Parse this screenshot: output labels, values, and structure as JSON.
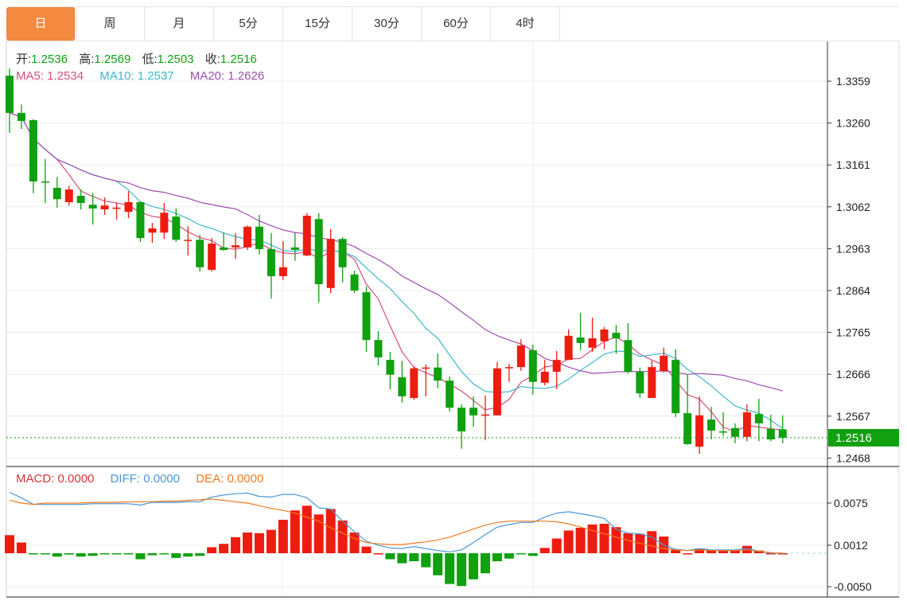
{
  "tabs": [
    {
      "label": "日",
      "active": true
    },
    {
      "label": "周"
    },
    {
      "label": "月"
    },
    {
      "label": "5分"
    },
    {
      "label": "15分"
    },
    {
      "label": "30分"
    },
    {
      "label": "60分"
    },
    {
      "label": "4时"
    }
  ],
  "ohlc_legend": {
    "open_label": "开:",
    "open": "1.2536",
    "high_label": "高:",
    "high": "1.2569",
    "low_label": "低:",
    "low": "1.2503",
    "close_label": "收:",
    "close": "1.2516"
  },
  "ma_legend": {
    "ma5": "MA5: 1.2534",
    "ma10": "MA10: 1.2537",
    "ma20": "MA20: 1.2626"
  },
  "macd_legend": {
    "macd": "MACD: 0.0000",
    "diff": "DIFF: 0.0000",
    "dea": "DEA: 0.0000"
  },
  "current_price": "1.2516",
  "colors": {
    "up": "#ee1c10",
    "down": "#10a010",
    "ma5": "#d4507c",
    "ma10": "#3eb8cc",
    "ma20": "#9d4fb0",
    "diff": "#4a98d8",
    "dea": "#f07a20",
    "tab_active": "#f48a3f"
  },
  "chart_data": [
    {
      "type": "candlestick",
      "y_ticks": [
        "1.3359",
        "1.3260",
        "1.3161",
        "1.3062",
        "1.2963",
        "1.2864",
        "1.2765",
        "1.2666",
        "1.2567",
        "1.2468"
      ],
      "ylim": [
        1.244,
        1.344
      ],
      "grid": true,
      "candles_ohlc": [
        [
          1.3372,
          1.3389,
          1.3237,
          1.3284
        ],
        [
          1.3284,
          1.3304,
          1.3246,
          1.3265
        ],
        [
          1.3267,
          1.3269,
          1.3094,
          1.3122
        ],
        [
          1.3122,
          1.3175,
          1.3071,
          1.312
        ],
        [
          1.3107,
          1.3133,
          1.306,
          1.308
        ],
        [
          1.3073,
          1.3112,
          1.3065,
          1.3103
        ],
        [
          1.3088,
          1.3103,
          1.3056,
          1.3071
        ],
        [
          1.3067,
          1.3094,
          1.302,
          1.3058
        ],
        [
          1.3056,
          1.3084,
          1.3043,
          1.3065
        ],
        [
          1.3058,
          1.3071,
          1.3032,
          1.306
        ],
        [
          1.305,
          1.3099,
          1.3035,
          1.3073
        ],
        [
          1.3073,
          1.3075,
          1.2979,
          1.2988
        ],
        [
          1.3001,
          1.3024,
          1.2977,
          1.3011
        ],
        [
          1.3001,
          1.3071,
          1.2986,
          1.3048
        ],
        [
          1.3039,
          1.3058,
          1.2979,
          1.2984
        ],
        [
          1.2983,
          1.3016,
          1.2947,
          1.2984
        ],
        [
          1.2984,
          1.2996,
          1.2909,
          1.2919
        ],
        [
          1.2913,
          1.2988,
          1.2909,
          1.2975
        ],
        [
          1.2966,
          1.3001,
          1.2958,
          1.296
        ],
        [
          1.2966,
          1.3,
          1.2939,
          1.2971
        ],
        [
          1.2966,
          1.3018,
          1.296,
          1.3015
        ],
        [
          1.3015,
          1.3043,
          1.2949,
          1.2962
        ],
        [
          1.2962,
          1.3,
          1.2845,
          1.2898
        ],
        [
          1.2898,
          1.2981,
          1.2889,
          1.2919
        ],
        [
          1.2966,
          1.3001,
          1.2934,
          1.296
        ],
        [
          1.2947,
          1.3047,
          1.2945,
          1.3041
        ],
        [
          1.3033,
          1.3047,
          1.2836,
          1.2879
        ],
        [
          1.287,
          1.3009,
          1.2858,
          1.2986
        ],
        [
          1.2986,
          1.299,
          1.2883,
          1.2919
        ],
        [
          1.2902,
          1.2911,
          1.2858,
          1.2864
        ],
        [
          1.286,
          1.2874,
          1.2719,
          1.2747
        ],
        [
          1.2747,
          1.2768,
          1.2687,
          1.2706
        ],
        [
          1.27,
          1.2719,
          1.2631,
          1.2665
        ],
        [
          1.2659,
          1.2698,
          1.2599,
          1.2614
        ],
        [
          1.261,
          1.2685,
          1.2606,
          1.268
        ],
        [
          1.268,
          1.2689,
          1.2614,
          1.2682
        ],
        [
          1.2682,
          1.2715,
          1.2633,
          1.2651
        ],
        [
          1.2651,
          1.2661,
          1.2578,
          1.2587
        ],
        [
          1.2587,
          1.2595,
          1.249,
          1.2531
        ],
        [
          1.2587,
          1.2614,
          1.2542,
          1.2569
        ],
        [
          1.2569,
          1.2616,
          1.251,
          1.2571
        ],
        [
          1.2569,
          1.2695,
          1.2569,
          1.268
        ],
        [
          1.268,
          1.2691,
          1.2648,
          1.2683
        ],
        [
          1.2683,
          1.2749,
          1.2674,
          1.2734
        ],
        [
          1.2723,
          1.2736,
          1.2618,
          1.2648
        ],
        [
          1.2646,
          1.27,
          1.264,
          1.2672
        ],
        [
          1.2672,
          1.2721,
          1.2631,
          1.27
        ],
        [
          1.27,
          1.2772,
          1.27,
          1.2757
        ],
        [
          1.2753,
          1.2811,
          1.2723,
          1.274
        ],
        [
          1.2729,
          1.28,
          1.2719,
          1.2751
        ],
        [
          1.2744,
          1.2778,
          1.2725,
          1.2772
        ],
        [
          1.2764,
          1.2783,
          1.2715,
          1.2751
        ],
        [
          1.2747,
          1.2787,
          1.2668,
          1.2672
        ],
        [
          1.2672,
          1.2682,
          1.261,
          1.2621
        ],
        [
          1.261,
          1.2698,
          1.261,
          1.2683
        ],
        [
          1.2674,
          1.2729,
          1.267,
          1.271
        ],
        [
          1.27,
          1.2725,
          1.2565,
          1.2574
        ],
        [
          1.2574,
          1.2666,
          1.2499,
          1.2501
        ],
        [
          1.2495,
          1.2614,
          1.2478,
          1.2569
        ],
        [
          1.2559,
          1.2589,
          1.2512,
          1.2533
        ],
        [
          1.2531,
          1.2576,
          1.252,
          1.2529
        ],
        [
          1.2539,
          1.255,
          1.2503,
          1.2518
        ],
        [
          1.2518,
          1.2595,
          1.2508,
          1.2576
        ],
        [
          1.2572,
          1.2608,
          1.2508,
          1.255
        ],
        [
          1.2537,
          1.257,
          1.2508,
          1.2512
        ],
        [
          1.2536,
          1.2569,
          1.2503,
          1.2516
        ]
      ]
    },
    {
      "type": "macd",
      "y_ticks": [
        "0.0075",
        "0.0012",
        "-0.0050"
      ],
      "ylim": [
        -0.0065,
        0.0095
      ],
      "histogram": [
        0.0027,
        0.0016,
        -0.0001,
        -0.0001,
        -0.0005,
        -0.0002,
        -0.0005,
        -0.0004,
        -0.0001,
        -0.0001,
        -0.0001,
        -0.0009,
        -0.0003,
        -0.0001,
        -0.0007,
        -0.0005,
        -0.0004,
        0.0009,
        0.0014,
        0.0024,
        0.0031,
        0.003,
        0.0035,
        0.005,
        0.0064,
        0.0071,
        0.0058,
        0.0066,
        0.0049,
        0.0031,
        0.001,
        0.0,
        -0.0009,
        -0.0015,
        -0.0012,
        -0.0021,
        -0.0033,
        -0.0046,
        -0.0049,
        -0.0039,
        -0.003,
        -0.0012,
        -0.0008,
        -0.0001,
        -0.0004,
        0.0008,
        0.0022,
        0.0034,
        0.0038,
        0.0043,
        0.0044,
        0.0039,
        0.003,
        0.0029,
        0.0033,
        0.0025,
        0.0006,
        0.0,
        0.0007,
        0.0004,
        0.0005,
        0.0005,
        0.0011,
        0.0004,
        0.0,
        0.0
      ],
      "diff": [
        0.0091,
        0.0083,
        0.0073,
        0.0073,
        0.0073,
        0.0073,
        0.0073,
        0.0074,
        0.0074,
        0.0074,
        0.0074,
        0.0072,
        0.0076,
        0.0076,
        0.0076,
        0.0077,
        0.0077,
        0.0084,
        0.0087,
        0.0089,
        0.009,
        0.0085,
        0.0084,
        0.0088,
        0.0088,
        0.0083,
        0.0068,
        0.0066,
        0.0048,
        0.0032,
        0.0018,
        0.0012,
        0.0008,
        0.0007,
        0.001,
        0.0007,
        0.0004,
        0.0002,
        0.0005,
        0.0016,
        0.0028,
        0.0039,
        0.0043,
        0.0046,
        0.0046,
        0.0054,
        0.006,
        0.0062,
        0.0059,
        0.0056,
        0.0052,
        0.0036,
        0.003,
        0.0029,
        0.0024,
        0.0012,
        0.0006,
        0.0004,
        0.0007,
        0.0005,
        0.0005,
        0.0005,
        0.0007,
        0.0003,
        0.0,
        0.0
      ],
      "dea": [
        0.0079,
        0.0075,
        0.0073,
        0.0075,
        0.0075,
        0.0075,
        0.0075,
        0.0076,
        0.0076,
        0.0076,
        0.0077,
        0.0077,
        0.0077,
        0.0078,
        0.0078,
        0.0079,
        0.008,
        0.0081,
        0.0079,
        0.0077,
        0.0075,
        0.0071,
        0.0067,
        0.0064,
        0.006,
        0.0054,
        0.0048,
        0.0038,
        0.003,
        0.0022,
        0.0016,
        0.0014,
        0.0013,
        0.0013,
        0.0015,
        0.0017,
        0.002,
        0.0024,
        0.003,
        0.0036,
        0.0042,
        0.0046,
        0.0048,
        0.0048,
        0.0048,
        0.0048,
        0.0047,
        0.0044,
        0.0039,
        0.0034,
        0.0029,
        0.0024,
        0.0019,
        0.0015,
        0.0011,
        0.0007,
        0.0005,
        0.0004,
        0.0005,
        0.0004,
        0.0004,
        0.0004,
        0.0005,
        0.0003,
        0.0001,
        0.0
      ]
    }
  ]
}
